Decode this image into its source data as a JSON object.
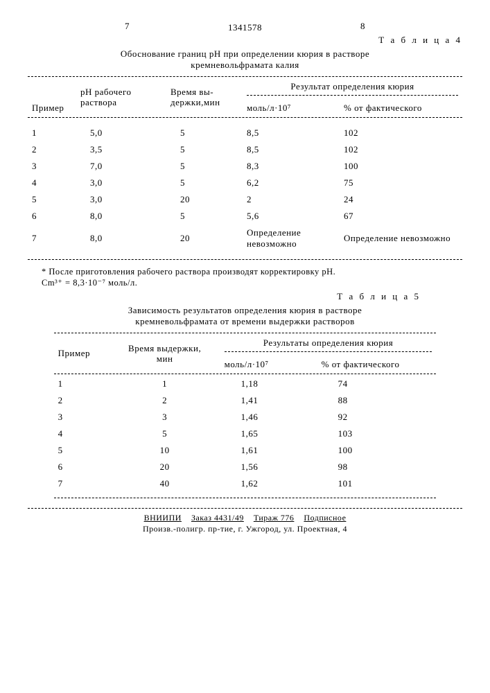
{
  "page_left": "7",
  "page_right": "8",
  "doc_number": "1341578",
  "table4": {
    "label": "Т а б л и ц а  4",
    "caption_l1": "Обоснование границ pH при определении кюрия в растворе",
    "caption_l2": "кремневольфрамата калия",
    "headers": {
      "c1": "Пример",
      "c2_l1": "pH рабочего",
      "c2_l2": "раствора",
      "c3_l1": "Время вы-",
      "c3_l2": "держки,мин",
      "c45_top": "Результат определения кюрия",
      "c4": "моль/л·10⁷",
      "c5": "% от фактического"
    },
    "rows": [
      [
        "1",
        "5,0",
        "5",
        "8,5",
        "102"
      ],
      [
        "2",
        "3,5",
        "5",
        "8,5",
        "102"
      ],
      [
        "3",
        "7,0",
        "5",
        "8,3",
        "100"
      ],
      [
        "4",
        "3,0",
        "5",
        "6,2",
        "75"
      ],
      [
        "5",
        "3,0",
        "20",
        "2",
        "24"
      ],
      [
        "6",
        "8,0",
        "5",
        "5,6",
        "67"
      ],
      [
        "7",
        "8,0",
        "20",
        "Определение невозможно",
        "Определение невозможно"
      ]
    ],
    "footnote_l1": "* После приготовления рабочего раствора производят корректировку pH.",
    "footnote_l2": "Cm³⁺ = 8,3·10⁻⁷ моль/л."
  },
  "table5": {
    "label": "Т а б л и ц а  5",
    "caption_l1": "Зависимость результатов определения кюрия в растворе",
    "caption_l2": "кремневольфрамата от времени выдержки растворов",
    "headers": {
      "c1": "Пример",
      "c2_l1": "Время выдержки,",
      "c2_l2": "мин",
      "c34_top": "Результаты определения кюрия",
      "c3": "моль/л·10⁷",
      "c4": "% от фактического"
    },
    "rows": [
      [
        "1",
        "1",
        "1,18",
        "74"
      ],
      [
        "2",
        "2",
        "1,41",
        "88"
      ],
      [
        "3",
        "3",
        "1,46",
        "92"
      ],
      [
        "4",
        "5",
        "1,65",
        "103"
      ],
      [
        "5",
        "10",
        "1,61",
        "100"
      ],
      [
        "6",
        "20",
        "1,56",
        "98"
      ],
      [
        "7",
        "40",
        "1,62",
        "101"
      ]
    ]
  },
  "footer": {
    "line1_a": "ВНИИПИ",
    "line1_b": "Заказ 4431/49",
    "line1_c": "Тираж 776",
    "line1_d": "Подписное",
    "line2": "Произв.-полигр. пр-тие, г. Ужгород, ул. Проектная, 4"
  }
}
